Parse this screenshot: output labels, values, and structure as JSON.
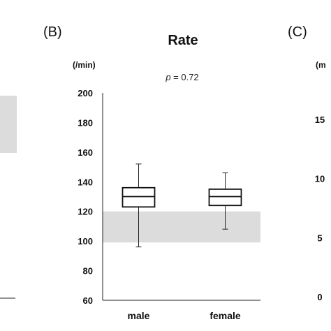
{
  "panels": {
    "b_label": "(B)",
    "c_label": "(C)"
  },
  "left_fragment": {
    "band_color": "#dcdcdc"
  },
  "right_fragment": {
    "unit_partial": "(m",
    "ticks": [
      "15",
      "10",
      "5",
      "0"
    ]
  },
  "chart_data": {
    "type": "box",
    "title": "Rate",
    "ylabel": "(/min)",
    "annotation_prefix": "p",
    "annotation_value": " = 0.72",
    "ylim": [
      60,
      200
    ],
    "yticks": [
      200,
      180,
      160,
      140,
      120,
      100,
      80,
      60
    ],
    "categories": [
      "male",
      "female"
    ],
    "reference_band": {
      "low": 99,
      "high": 120,
      "color": "#dcdcdc"
    },
    "boxes": [
      {
        "category": "male",
        "min": 96,
        "q1": 123,
        "median": 130,
        "q3": 136,
        "max": 152
      },
      {
        "category": "female",
        "min": 108,
        "q1": 124,
        "median": 130,
        "q3": 135,
        "max": 146
      }
    ]
  }
}
